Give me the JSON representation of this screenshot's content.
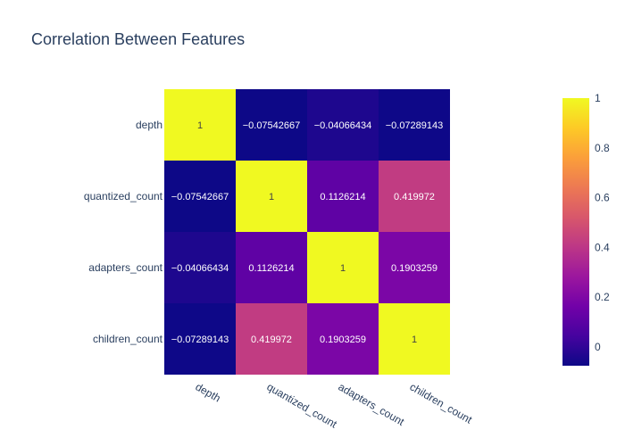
{
  "chart_data": {
    "type": "heatmap",
    "title": "Correlation Between Features",
    "x_labels": [
      "depth",
      "quantized_count",
      "adapters_count",
      "children_count"
    ],
    "y_labels": [
      "depth",
      "quantized_count",
      "adapters_count",
      "children_count"
    ],
    "values": [
      [
        1,
        -0.07542667,
        -0.04066434,
        -0.07289143
      ],
      [
        -0.07542667,
        1,
        0.1126214,
        0.419972
      ],
      [
        -0.04066434,
        0.1126214,
        1,
        0.1903259
      ],
      [
        -0.07289143,
        0.419972,
        0.1903259,
        1
      ]
    ],
    "cell_text": [
      [
        "1",
        "−0.07542667",
        "−0.04066434",
        "−0.07289143"
      ],
      [
        "−0.07542667",
        "1",
        "0.1126214",
        "0.419972"
      ],
      [
        "−0.04066434",
        "0.1126214",
        "1",
        "0.1903259"
      ],
      [
        "−0.07289143",
        "0.419972",
        "0.1903259",
        "1"
      ]
    ],
    "zrange": [
      -0.07542667,
      1
    ],
    "colorscale": [
      "#0d0887",
      "#46039f",
      "#7201a8",
      "#9c179e",
      "#bd3786",
      "#d8576b",
      "#ed7953",
      "#fb9f3a",
      "#fdca26",
      "#f0f921"
    ],
    "colorbar_ticks": [
      0,
      0.2,
      0.4,
      0.6,
      0.8,
      1
    ],
    "colorbar_tick_labels": [
      "0",
      "0.2",
      "0.4",
      "0.6",
      "0.8",
      "1"
    ]
  }
}
